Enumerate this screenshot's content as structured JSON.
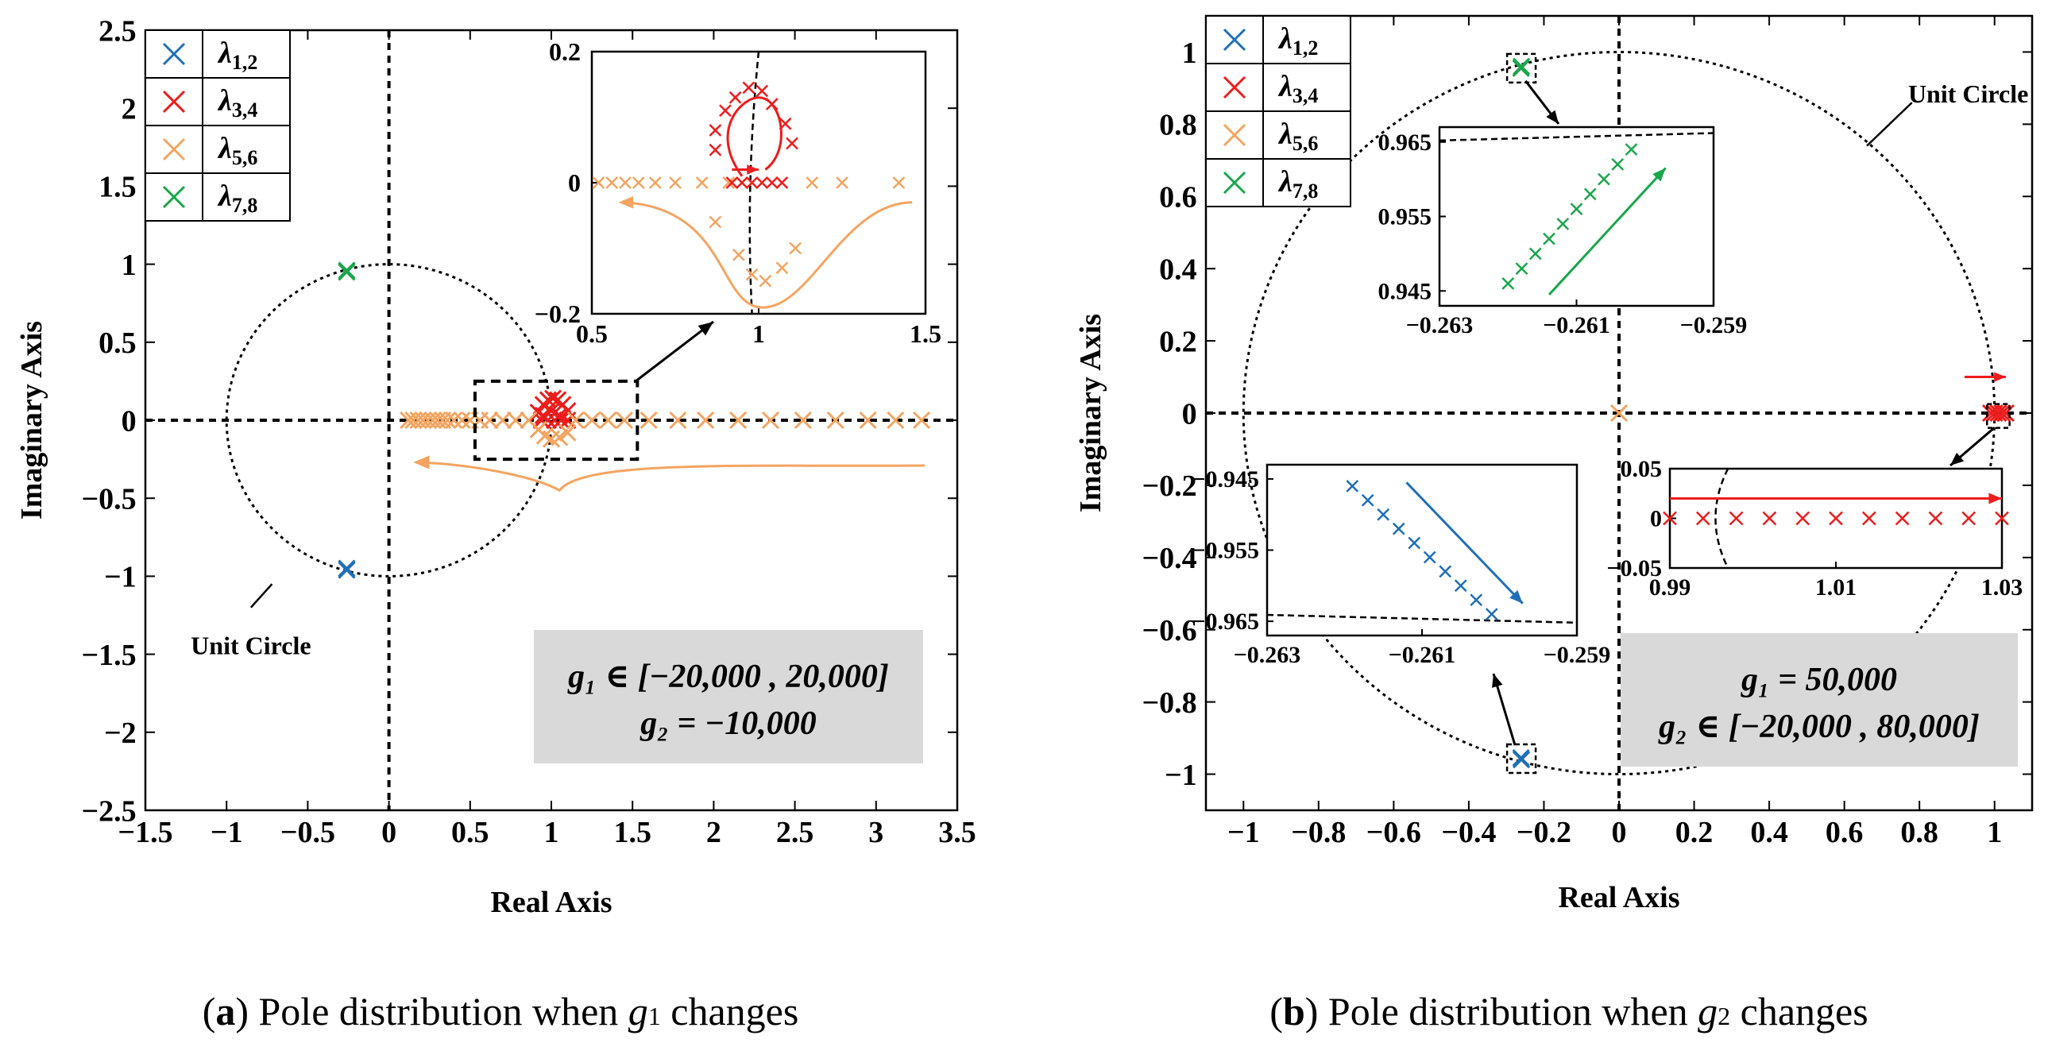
{
  "colors": {
    "blue": "#1f6fb8",
    "red": "#ee1c1c",
    "orange": "#f4a460",
    "green": "#1aa64b",
    "black": "#000000",
    "box": "#d9d9d9"
  },
  "legend": [
    {
      "base": "λ",
      "sub": "1,2",
      "color": "blue"
    },
    {
      "base": "λ",
      "sub": "3,4",
      "color": "red"
    },
    {
      "base": "λ",
      "sub": "5,6",
      "color": "orange"
    },
    {
      "base": "λ",
      "sub": "7,8",
      "color": "green"
    }
  ],
  "chart_data": [
    {
      "type": "scatter",
      "panel": "a",
      "title": "",
      "xlabel": "Real Axis",
      "ylabel": "Imaginary Axis",
      "xlim": [
        -1.5,
        3.5
      ],
      "ylim": [
        -2.5,
        2.5
      ],
      "xticks": [
        -1.5,
        -1,
        -0.5,
        0,
        0.5,
        1,
        1.5,
        2,
        2.5,
        3,
        3.5
      ],
      "xtick_labels": [
        "−1.5",
        "−1",
        "−0.5",
        "0",
        "0.5",
        "1",
        "1.5",
        "2",
        "2.5",
        "3",
        "3.5"
      ],
      "yticks": [
        2.5,
        2,
        1.5,
        1,
        0.5,
        0,
        -0.5,
        -1,
        -1.5,
        -2,
        -2.5
      ],
      "ytick_labels": [
        "2.5",
        "2",
        "1.5",
        "1",
        "0.5",
        "0",
        "−0.5",
        "−1",
        "−1.5",
        "−2",
        "−2.5"
      ],
      "unit_circle_label": "Unit Circle",
      "annotation": {
        "line1": "g₁ ∈ [−20,000 , 20,000]",
        "line2": "g₂ = −10,000"
      },
      "caption": {
        "letter": "a",
        "before": " Pole distribution when ",
        "var": "g",
        "sub": "1",
        "after": " changes"
      },
      "series": [
        {
          "name": "λ1,2",
          "color": "blue",
          "points": [
            [
              -0.26,
              -0.96
            ],
            [
              -0.26,
              -0.95
            ]
          ]
        },
        {
          "name": "λ7,8",
          "color": "green",
          "points": [
            [
              -0.26,
              0.96
            ],
            [
              -0.26,
              0.95
            ]
          ]
        },
        {
          "name": "λ3,4",
          "color": "red",
          "points": [
            [
              0.92,
              0.05
            ],
            [
              0.95,
              0.1
            ],
            [
              0.98,
              0.13
            ],
            [
              1.01,
              0.14
            ],
            [
              1.04,
              0.13
            ],
            [
              1.07,
              0.1
            ],
            [
              1.1,
              0.06
            ],
            [
              0.94,
              0.0
            ],
            [
              0.98,
              0.0
            ],
            [
              1.02,
              0.0
            ],
            [
              1.06,
              0.0
            ],
            [
              1.1,
              0.0
            ],
            [
              0.95,
              0.03
            ],
            [
              1.05,
              0.03
            ],
            [
              1.0,
              0.06
            ]
          ]
        },
        {
          "name": "λ5,6",
          "color": "orange",
          "points": [
            [
              0.12,
              0
            ],
            [
              0.15,
              0
            ],
            [
              0.18,
              0
            ],
            [
              0.21,
              0
            ],
            [
              0.24,
              0
            ],
            [
              0.27,
              0
            ],
            [
              0.3,
              0
            ],
            [
              0.33,
              0
            ],
            [
              0.36,
              0
            ],
            [
              0.4,
              0
            ],
            [
              0.45,
              0
            ],
            [
              0.5,
              0
            ],
            [
              0.56,
              0
            ],
            [
              0.62,
              0
            ],
            [
              0.7,
              0
            ],
            [
              0.78,
              0
            ],
            [
              0.86,
              0
            ],
            [
              0.92,
              -0.06
            ],
            [
              0.96,
              -0.1
            ],
            [
              1.0,
              -0.12
            ],
            [
              1.05,
              -0.11
            ],
            [
              1.1,
              -0.08
            ],
            [
              1.15,
              0
            ],
            [
              1.25,
              0
            ],
            [
              1.35,
              0
            ],
            [
              1.45,
              0
            ],
            [
              1.6,
              0
            ],
            [
              1.78,
              0
            ],
            [
              1.95,
              0
            ],
            [
              2.15,
              0
            ],
            [
              2.35,
              0
            ],
            [
              2.55,
              0
            ],
            [
              2.75,
              0
            ],
            [
              2.95,
              0
            ],
            [
              3.12,
              0
            ],
            [
              3.28,
              0
            ]
          ]
        }
      ],
      "inset": {
        "xlim": [
          0.5,
          1.5
        ],
        "ylim": [
          -0.2,
          0.2
        ],
        "xticks": [
          0.5,
          1,
          1.5
        ],
        "xtick_labels": [
          "0.5",
          "1",
          "1.5"
        ],
        "yticks": [
          0.2,
          0,
          -0.2
        ],
        "ytick_labels": [
          "0.2",
          "0",
          "−0.2"
        ],
        "red_points": [
          [
            0.87,
            0.08
          ],
          [
            0.9,
            0.11
          ],
          [
            0.93,
            0.13
          ],
          [
            0.97,
            0.145
          ],
          [
            1.01,
            0.14
          ],
          [
            1.04,
            0.12
          ],
          [
            1.08,
            0.09
          ],
          [
            0.87,
            0.05
          ],
          [
            1.1,
            0.06
          ],
          [
            0.92,
            0.0
          ],
          [
            0.95,
            0.0
          ],
          [
            0.98,
            0.0
          ],
          [
            1.01,
            0.0
          ],
          [
            1.04,
            0.0
          ],
          [
            1.07,
            0.0
          ]
        ],
        "orange_points": [
          [
            0.52,
            0
          ],
          [
            0.56,
            0
          ],
          [
            0.6,
            0
          ],
          [
            0.64,
            0
          ],
          [
            0.69,
            0
          ],
          [
            0.75,
            0
          ],
          [
            0.83,
            0
          ],
          [
            0.91,
            0
          ],
          [
            0.87,
            -0.06
          ],
          [
            0.94,
            -0.11
          ],
          [
            0.98,
            -0.14
          ],
          [
            1.02,
            -0.15
          ],
          [
            1.07,
            -0.13
          ],
          [
            1.11,
            -0.1
          ],
          [
            1.16,
            0
          ],
          [
            1.25,
            0
          ],
          [
            1.42,
            0
          ]
        ]
      }
    },
    {
      "type": "scatter",
      "panel": "b",
      "title": "",
      "xlabel": "Real Axis",
      "ylabel": "Imaginary Axis",
      "xlim": [
        -1.1,
        1.1
      ],
      "ylim": [
        -1.1,
        1.1
      ],
      "xticks": [
        -1,
        -0.8,
        -0.6,
        -0.4,
        -0.2,
        0,
        0.2,
        0.4,
        0.6,
        0.8,
        1
      ],
      "xtick_labels": [
        "−1",
        "−0.8",
        "−0.6",
        "−0.4",
        "−0.2",
        "0",
        "0.2",
        "0.4",
        "0.6",
        "0.8",
        "1"
      ],
      "yticks": [
        1,
        0.8,
        0.6,
        0.4,
        0.2,
        0,
        -0.2,
        -0.4,
        -0.6,
        -0.8,
        -1
      ],
      "ytick_labels": [
        "1",
        "0.8",
        "0.6",
        "0.4",
        "0.2",
        "0",
        "−0.2",
        "−0.4",
        "−0.6",
        "−0.8",
        "−1"
      ],
      "unit_circle_label": "Unit Circle",
      "annotation": {
        "line1": "g₁ = 50,000",
        "line2": "g₂ ∈ [−20,000 , 80,000]"
      },
      "caption": {
        "letter": "b",
        "before": " Pole distribution when ",
        "var": "g",
        "sub": "2",
        "after": " changes"
      },
      "series": [
        {
          "name": "λ1,2",
          "color": "blue",
          "points": [
            [
              -0.261,
              -0.955
            ],
            [
              -0.26,
              -0.96
            ]
          ]
        },
        {
          "name": "λ7,8",
          "color": "green",
          "points": [
            [
              -0.261,
              0.955
            ],
            [
              -0.26,
              0.96
            ]
          ]
        },
        {
          "name": "λ3,4",
          "color": "red",
          "points": [
            [
              0.99,
              0
            ],
            [
              1.0,
              0
            ],
            [
              1.01,
              0
            ],
            [
              1.02,
              0
            ],
            [
              1.03,
              0
            ]
          ]
        },
        {
          "name": "λ5,6",
          "color": "orange",
          "points": [
            [
              0.0,
              0.0
            ]
          ]
        }
      ],
      "inset_green": {
        "xlim": [
          -0.263,
          -0.259
        ],
        "ylim": [
          0.943,
          0.967
        ],
        "xticks": [
          -0.263,
          -0.261,
          -0.259
        ],
        "xtick_labels": [
          "−0.263",
          "−0.261",
          "−0.259"
        ],
        "yticks": [
          0.965,
          0.955,
          0.945
        ],
        "ytick_labels": [
          "0.965",
          "0.955",
          "0.945"
        ],
        "points": [
          [
            -0.262,
            0.946
          ],
          [
            -0.2618,
            0.948
          ],
          [
            -0.2616,
            0.95
          ],
          [
            -0.2614,
            0.952
          ],
          [
            -0.2612,
            0.954
          ],
          [
            -0.261,
            0.956
          ],
          [
            -0.2608,
            0.958
          ],
          [
            -0.2606,
            0.96
          ],
          [
            -0.2604,
            0.962
          ],
          [
            -0.2602,
            0.964
          ]
        ]
      },
      "inset_blue": {
        "xlim": [
          -0.263,
          -0.259
        ],
        "ylim": [
          -0.967,
          -0.943
        ],
        "xticks": [
          -0.263,
          -0.261,
          -0.259
        ],
        "xtick_labels": [
          "−0.263",
          "−0.261",
          "−0.259"
        ],
        "yticks": [
          -0.945,
          -0.955,
          -0.965
        ],
        "ytick_labels": [
          "−0.945",
          "−0.955",
          "−0.965"
        ],
        "points": [
          [
            -0.2619,
            -0.946
          ],
          [
            -0.2617,
            -0.948
          ],
          [
            -0.2615,
            -0.95
          ],
          [
            -0.2613,
            -0.952
          ],
          [
            -0.2611,
            -0.954
          ],
          [
            -0.2609,
            -0.956
          ],
          [
            -0.2607,
            -0.958
          ],
          [
            -0.2605,
            -0.96
          ],
          [
            -0.2603,
            -0.962
          ],
          [
            -0.2601,
            -0.964
          ]
        ]
      },
      "inset_red": {
        "xlim": [
          0.99,
          1.03
        ],
        "ylim": [
          -0.05,
          0.05
        ],
        "xticks": [
          0.99,
          1.01,
          1.03
        ],
        "xtick_labels": [
          "0.99",
          "1.01",
          "1.03"
        ],
        "yticks": [
          0.05,
          0,
          -0.05
        ],
        "ytick_labels": [
          "0.05",
          "0",
          "−0.05"
        ],
        "points": [
          [
            0.99,
            0
          ],
          [
            0.994,
            0
          ],
          [
            0.998,
            0
          ],
          [
            1.002,
            0
          ],
          [
            1.006,
            0
          ],
          [
            1.01,
            0
          ],
          [
            1.014,
            0
          ],
          [
            1.018,
            0
          ],
          [
            1.022,
            0
          ],
          [
            1.026,
            0
          ],
          [
            1.03,
            0
          ]
        ]
      }
    }
  ]
}
